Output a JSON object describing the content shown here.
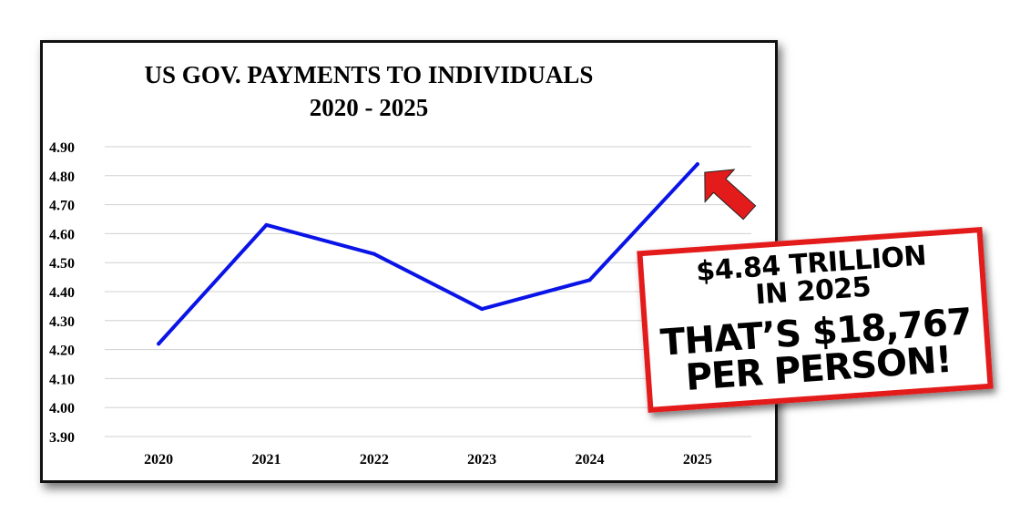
{
  "chart_data": {
    "type": "line",
    "title": "US GOV. PAYMENTS TO INDIVIDUALS",
    "subtitle": "2020 - 2025",
    "categories": [
      "2020",
      "2021",
      "2022",
      "2023",
      "2024",
      "2025"
    ],
    "series": [
      {
        "values": [
          4.22,
          4.63,
          4.53,
          4.34,
          4.44,
          4.84
        ],
        "color": "#0a14e6"
      }
    ],
    "yticks": [
      "4.90",
      "4.80",
      "4.70",
      "4.60",
      "4.50",
      "4.40",
      "4.30",
      "4.20",
      "4.10",
      "4.00",
      "3.90"
    ],
    "ylim": [
      3.9,
      4.9
    ],
    "grid": true,
    "legend": "none"
  },
  "callout": {
    "line1": "$4.84 TRILLION",
    "line2": "IN 2025",
    "line3": "THAT’S $18,767",
    "line4": "PER PERSON!",
    "border_color": "#e41b1b",
    "arrow_color": "#e41b1b",
    "arrow_icon": "arrow-up-left-icon"
  }
}
